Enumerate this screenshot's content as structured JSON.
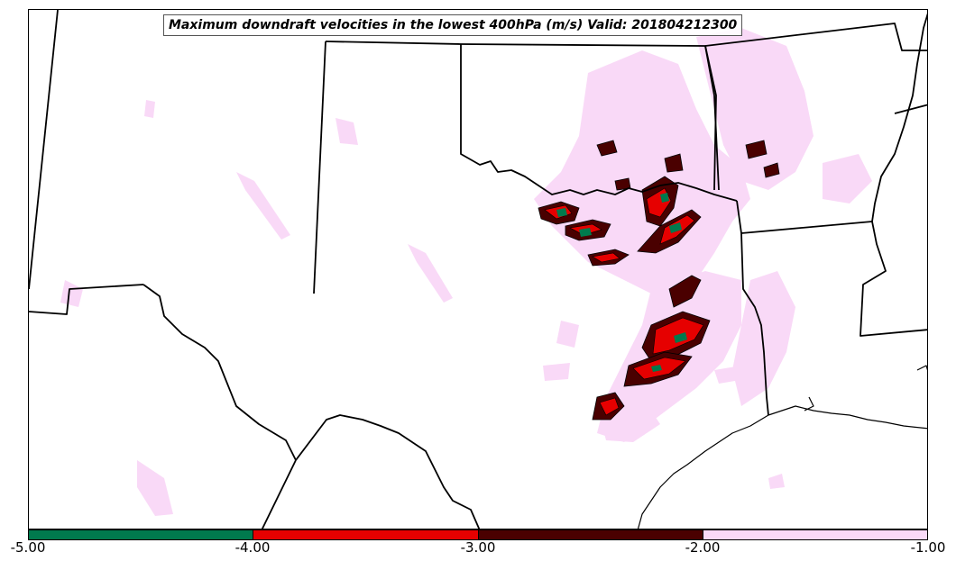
{
  "title": "Maximum downdraft velocities in the lowest 400hPa (m/s) Valid: 201804212300",
  "colorbar": {
    "ticks": [
      "-5.00",
      "-4.00",
      "-3.00",
      "-2.00",
      "-1.00"
    ],
    "segments": [
      {
        "range": [
          -5.0,
          -4.0
        ],
        "color": "#007a4d"
      },
      {
        "range": [
          -4.0,
          -3.0
        ],
        "color": "#e60000"
      },
      {
        "range": [
          -3.0,
          -2.0
        ],
        "color": "#4a0000"
      },
      {
        "range": [
          -2.0,
          -1.0
        ],
        "color": "#f9d9f7"
      }
    ]
  },
  "colors": {
    "boundary": "#000000",
    "light": "#f9d9f7"
  }
}
